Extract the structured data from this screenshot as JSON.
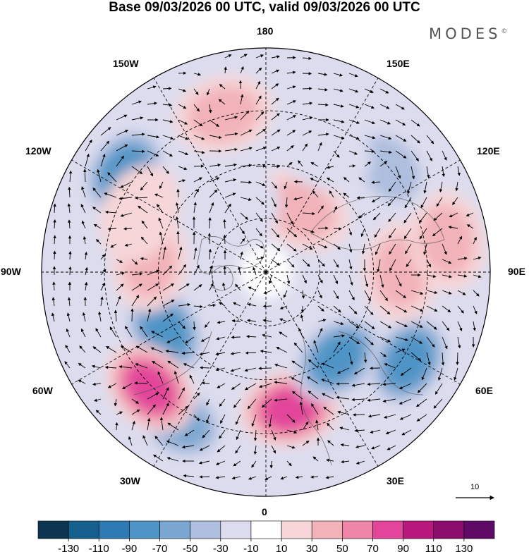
{
  "header": {
    "title": "Base 09/03/2026 00 UTC, valid 09/03/2026 00 UTC",
    "logo_text": "MODES"
  },
  "map": {
    "projection": "north-polar-stereographic",
    "longitude_labels": [
      "180",
      "150E",
      "120E",
      "90E",
      "60E",
      "30E",
      "0",
      "30W",
      "60W",
      "90W",
      "120W",
      "150W"
    ],
    "vector_reference": {
      "value": "10"
    }
  },
  "colorbar": {
    "ticks": [
      "-130",
      "-110",
      "-90",
      "-70",
      "-50",
      "-30",
      "-10",
      "10",
      "30",
      "50",
      "70",
      "90",
      "110",
      "130"
    ],
    "colors": [
      "#0b3550",
      "#155f8f",
      "#2e7ab5",
      "#4f94c6",
      "#7aa7d2",
      "#aebedf",
      "#dcdcee",
      "#ffffff",
      "#f6d6d8",
      "#f2b2b9",
      "#ee85a8",
      "#e2459a",
      "#b8187e",
      "#8d0d6e",
      "#5e0a66"
    ]
  },
  "field": {
    "anomaly_centers": [
      {
        "name": "east-pacific-low",
        "value": -90,
        "lon": -125,
        "r": 0.77
      },
      {
        "name": "north-atlantic-low",
        "value": -90,
        "lon": -60,
        "r": 0.52
      },
      {
        "name": "central-atlantic-low",
        "value": -70,
        "lon": -30,
        "r": 0.77
      },
      {
        "name": "greenland-high",
        "value": 90,
        "lon": -45,
        "r": 0.73
      },
      {
        "name": "hudson-high",
        "value": 50,
        "lon": -95,
        "r": 0.52
      },
      {
        "name": "gulf-alaska-high",
        "value": 50,
        "lon": -165,
        "r": 0.73
      },
      {
        "name": "siberia-high",
        "value": 50,
        "lon": 150,
        "r": 0.32
      },
      {
        "name": "europe-high",
        "value": 90,
        "lon": 10,
        "r": 0.62
      },
      {
        "name": "scandinavia-low",
        "value": -90,
        "lon": 40,
        "r": 0.5
      },
      {
        "name": "west-russia-low",
        "value": -90,
        "lon": 58,
        "r": 0.75
      },
      {
        "name": "siberia-ridge",
        "value": 50,
        "lon": 90,
        "r": 0.6
      },
      {
        "name": "east-asia-high",
        "value": 50,
        "lon": 100,
        "r": 0.82
      },
      {
        "name": "japan-low",
        "value": -50,
        "lon": 130,
        "r": 0.72
      },
      {
        "name": "arctic-low",
        "value": -30,
        "lon": 155,
        "r": 0.6
      },
      {
        "name": "chukchi-low",
        "value": -30,
        "lon": -150,
        "r": 0.3
      },
      {
        "name": "alaska-high",
        "value": 30,
        "lon": -115,
        "r": 0.62
      }
    ]
  }
}
